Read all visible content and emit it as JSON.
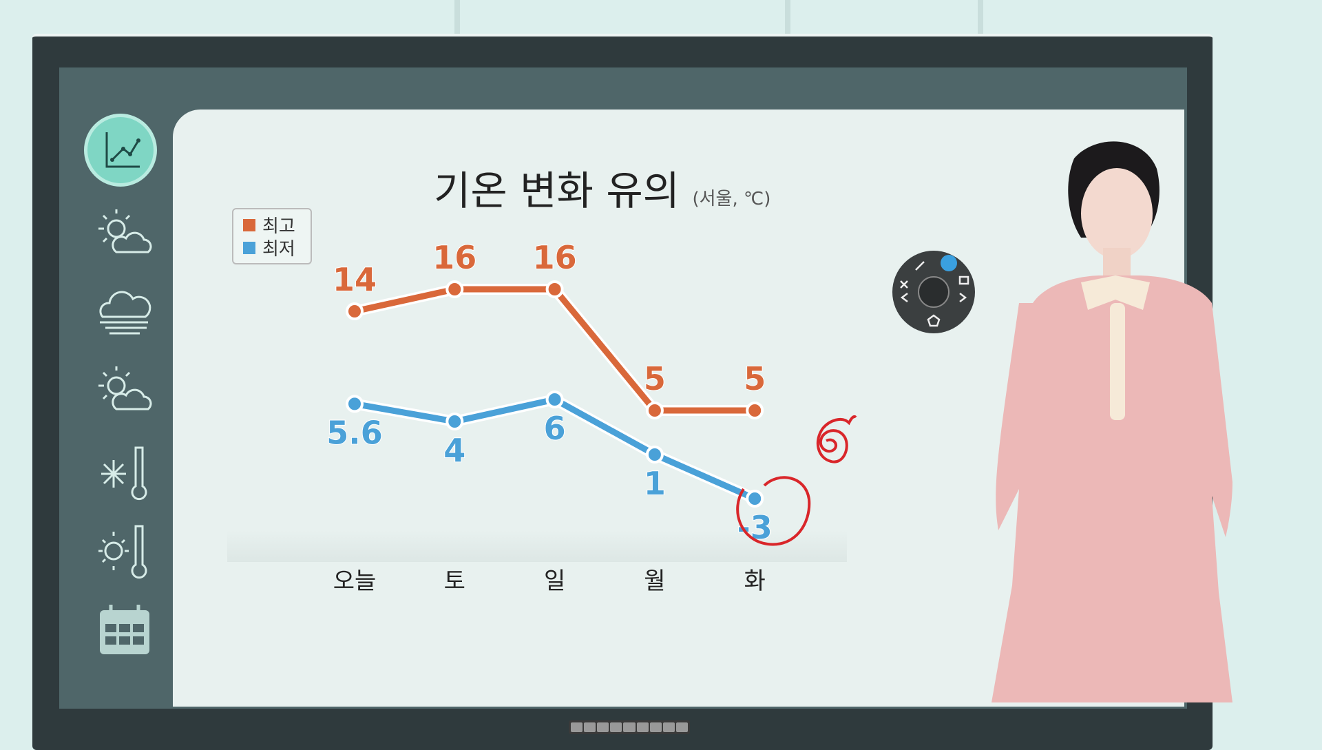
{
  "chart_data": {
    "type": "line",
    "title": "기온 변화 유의",
    "subtitle": "(서울, ℃)",
    "categories": [
      "오늘",
      "토",
      "일",
      "월",
      "화"
    ],
    "series": [
      {
        "name": "최고",
        "color": "#d9683a",
        "values": [
          14,
          16,
          16,
          5,
          5
        ],
        "labels": [
          "14",
          "16",
          "16",
          "5",
          "5"
        ]
      },
      {
        "name": "최저",
        "color": "#4aa1d8",
        "values": [
          5.6,
          4,
          6,
          1,
          -3
        ],
        "labels": [
          "5.6",
          "4",
          "6",
          "1",
          "-3"
        ]
      }
    ],
    "legend": "top-left",
    "grid": false,
    "annotations": [
      "red hand-drawn circle around -3",
      "red hand-drawn spiral"
    ]
  },
  "sidebar": {
    "icons": [
      "line-chart-icon",
      "partly-sunny-icon",
      "fog-icon",
      "sun-cloud-icon",
      "snow-thermometer-icon",
      "sun-thermometer-icon",
      "calendar-icon"
    ]
  },
  "pen_wheel": {
    "icons": [
      "pencil-icon",
      "highlighter-icon",
      "scissors-icon",
      "screen-icon",
      "back-arrow-icon",
      "forward-arrow-icon",
      "settings-icon"
    ],
    "accent": "#3aa0e0"
  }
}
